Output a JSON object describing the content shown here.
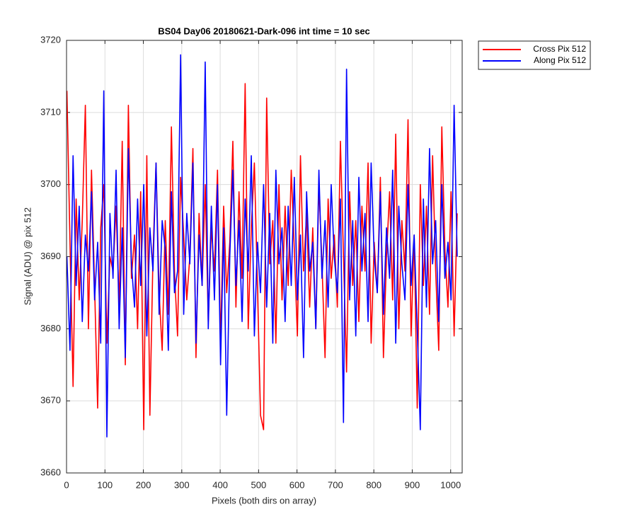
{
  "chart_data": {
    "type": "line",
    "title": "BS04 Day06 20180621-Dark-096 int time = 10 sec",
    "xlabel": "Pixels (both dirs on array)",
    "ylabel": "Signal (ADU) @ pix 512",
    "xlim": [
      0,
      1030
    ],
    "xticks": [
      0,
      100,
      200,
      300,
      400,
      500,
      600,
      700,
      800,
      900,
      1000
    ],
    "ylim": [
      3660,
      3720
    ],
    "yticks": [
      3660,
      3670,
      3680,
      3690,
      3700,
      3710,
      3720
    ],
    "grid": true,
    "legend": "northeastoutside",
    "x": [
      1,
      9,
      17,
      25,
      33,
      41,
      49,
      57,
      65,
      73,
      81,
      89,
      97,
      105,
      113,
      121,
      129,
      137,
      145,
      153,
      161,
      169,
      177,
      185,
      193,
      201,
      209,
      217,
      225,
      233,
      241,
      249,
      257,
      265,
      273,
      281,
      289,
      297,
      305,
      313,
      321,
      329,
      337,
      345,
      353,
      361,
      369,
      377,
      385,
      393,
      401,
      409,
      417,
      425,
      433,
      441,
      449,
      457,
      465,
      473,
      481,
      489,
      497,
      505,
      513,
      521,
      529,
      537,
      545,
      553,
      561,
      569,
      577,
      585,
      593,
      601,
      609,
      617,
      625,
      633,
      641,
      649,
      657,
      665,
      673,
      681,
      689,
      697,
      705,
      713,
      721,
      729,
      737,
      745,
      753,
      761,
      769,
      777,
      785,
      793,
      801,
      809,
      817,
      825,
      833,
      841,
      849,
      857,
      865,
      873,
      881,
      889,
      897,
      905,
      913,
      921,
      929,
      937,
      945,
      953,
      961,
      969,
      977,
      985,
      993,
      1001,
      1009,
      1017
    ],
    "series": [
      {
        "name": "Cross Pix 512",
        "color": "#ff0000",
        "values": [
          3713,
          3692,
          3672,
          3698,
          3684,
          3695,
          3711,
          3680,
          3702,
          3686,
          3669,
          3694,
          3700,
          3678,
          3690,
          3688,
          3697,
          3683,
          3706,
          3675,
          3711,
          3687,
          3693,
          3680,
          3699,
          3666,
          3704,
          3668,
          3690,
          3703,
          3685,
          3677,
          3695,
          3682,
          3708,
          3688,
          3679,
          3701,
          3693,
          3684,
          3690,
          3705,
          3676,
          3696,
          3686,
          3700,
          3681,
          3694,
          3688,
          3702,
          3678,
          3697,
          3685,
          3692,
          3706,
          3683,
          3699,
          3687,
          3714,
          3680,
          3694,
          3703,
          3686,
          3668,
          3666,
          3712,
          3689,
          3695,
          3678,
          3700,
          3684,
          3697,
          3686,
          3702,
          3691,
          3679,
          3704,
          3688,
          3696,
          3683,
          3694,
          3680,
          3700,
          3689,
          3676,
          3698,
          3687,
          3693,
          3683,
          3706,
          3690,
          3674,
          3699,
          3686,
          3695,
          3681,
          3697,
          3688,
          3703,
          3678,
          3692,
          3685,
          3701,
          3676,
          3690,
          3699,
          3684,
          3707,
          3680,
          3695,
          3688,
          3709,
          3679,
          3693,
          3669,
          3700,
          3686,
          3697,
          3682,
          3704,
          3688,
          3677,
          3708,
          3691,
          3683,
          3699,
          3679,
          3696
        ]
      },
      {
        "name": "Along Pix 512",
        "color": "#0000ff",
        "values": [
          3690,
          3677,
          3704,
          3686,
          3697,
          3681,
          3693,
          3688,
          3699,
          3684,
          3692,
          3678,
          3713,
          3665,
          3696,
          3687,
          3702,
          3680,
          3694,
          3676,
          3705,
          3689,
          3683,
          3698,
          3686,
          3700,
          3679,
          3694,
          3688,
          3703,
          3682,
          3695,
          3691,
          3677,
          3699,
          3685,
          3688,
          3718,
          3682,
          3696,
          3689,
          3703,
          3678,
          3693,
          3686,
          3717,
          3680,
          3697,
          3684,
          3700,
          3675,
          3694,
          3668,
          3690,
          3702,
          3686,
          3695,
          3681,
          3698,
          3688,
          3704,
          3679,
          3692,
          3685,
          3700,
          3683,
          3696,
          3678,
          3702,
          3689,
          3694,
          3681,
          3697,
          3686,
          3701,
          3684,
          3693,
          3676,
          3699,
          3688,
          3692,
          3680,
          3702,
          3687,
          3695,
          3683,
          3700,
          3690,
          3685,
          3698,
          3667,
          3716,
          3684,
          3695,
          3679,
          3701,
          3688,
          3696,
          3681,
          3703,
          3690,
          3685,
          3699,
          3682,
          3694,
          3687,
          3702,
          3678,
          3697,
          3689,
          3684,
          3700,
          3686,
          3693,
          3680,
          3666,
          3698,
          3683,
          3705,
          3689,
          3695,
          3681,
          3700,
          3687,
          3692,
          3684,
          3711,
          3690
        ]
      }
    ]
  }
}
